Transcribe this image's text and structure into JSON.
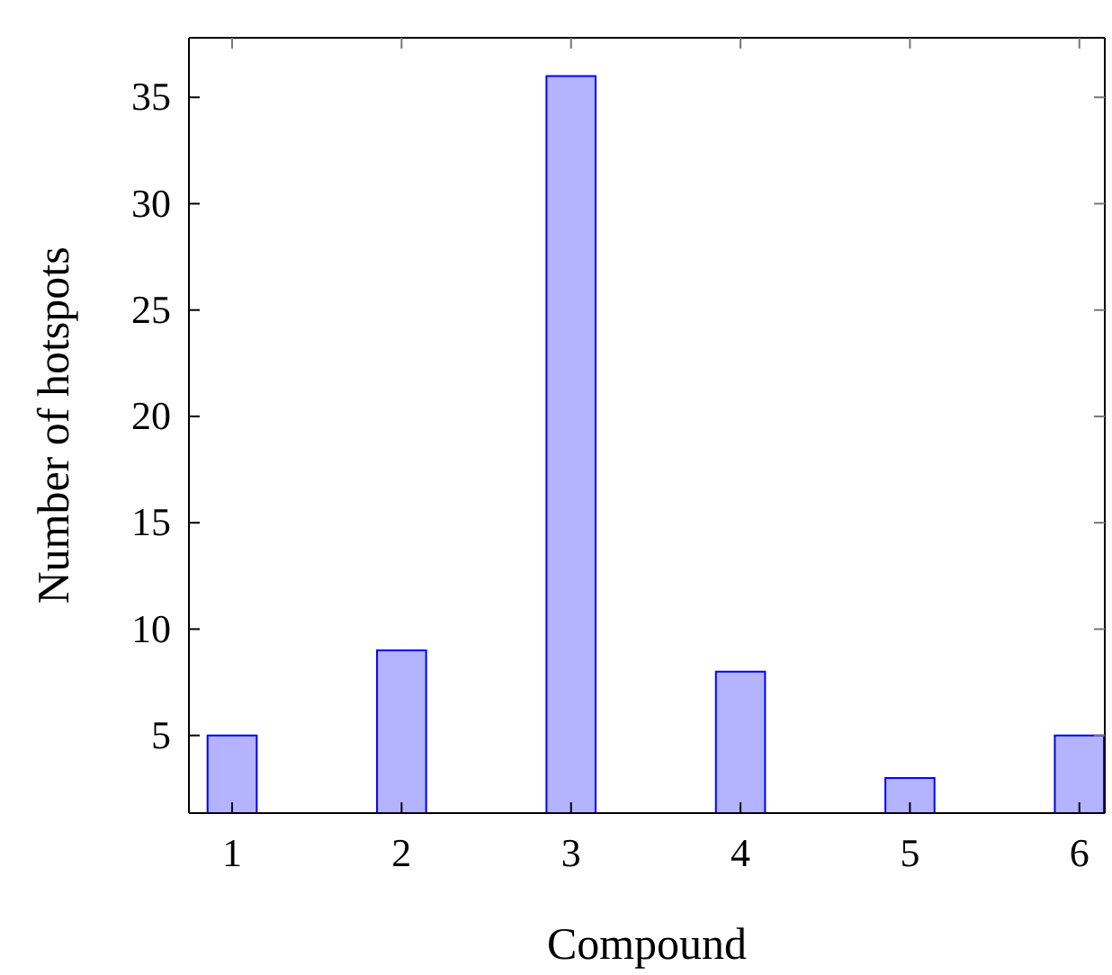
{
  "chart_data": {
    "type": "bar",
    "xlabel": "Compound",
    "ylabel": "Number of hotspots",
    "x": [
      1,
      2,
      3,
      4,
      5,
      6
    ],
    "series": [
      {
        "color": "#b3b3ff",
        "values": [
          5,
          9,
          36,
          8,
          3,
          5
        ]
      }
    ],
    "xlim": [
      0.745,
      6.15
    ],
    "xticks": [
      1,
      2,
      3,
      4,
      5,
      6
    ],
    "ylim": [
      1.35,
      37.8
    ],
    "yticks": [
      5,
      10,
      15,
      20,
      25,
      30,
      35
    ],
    "grid": false
  }
}
